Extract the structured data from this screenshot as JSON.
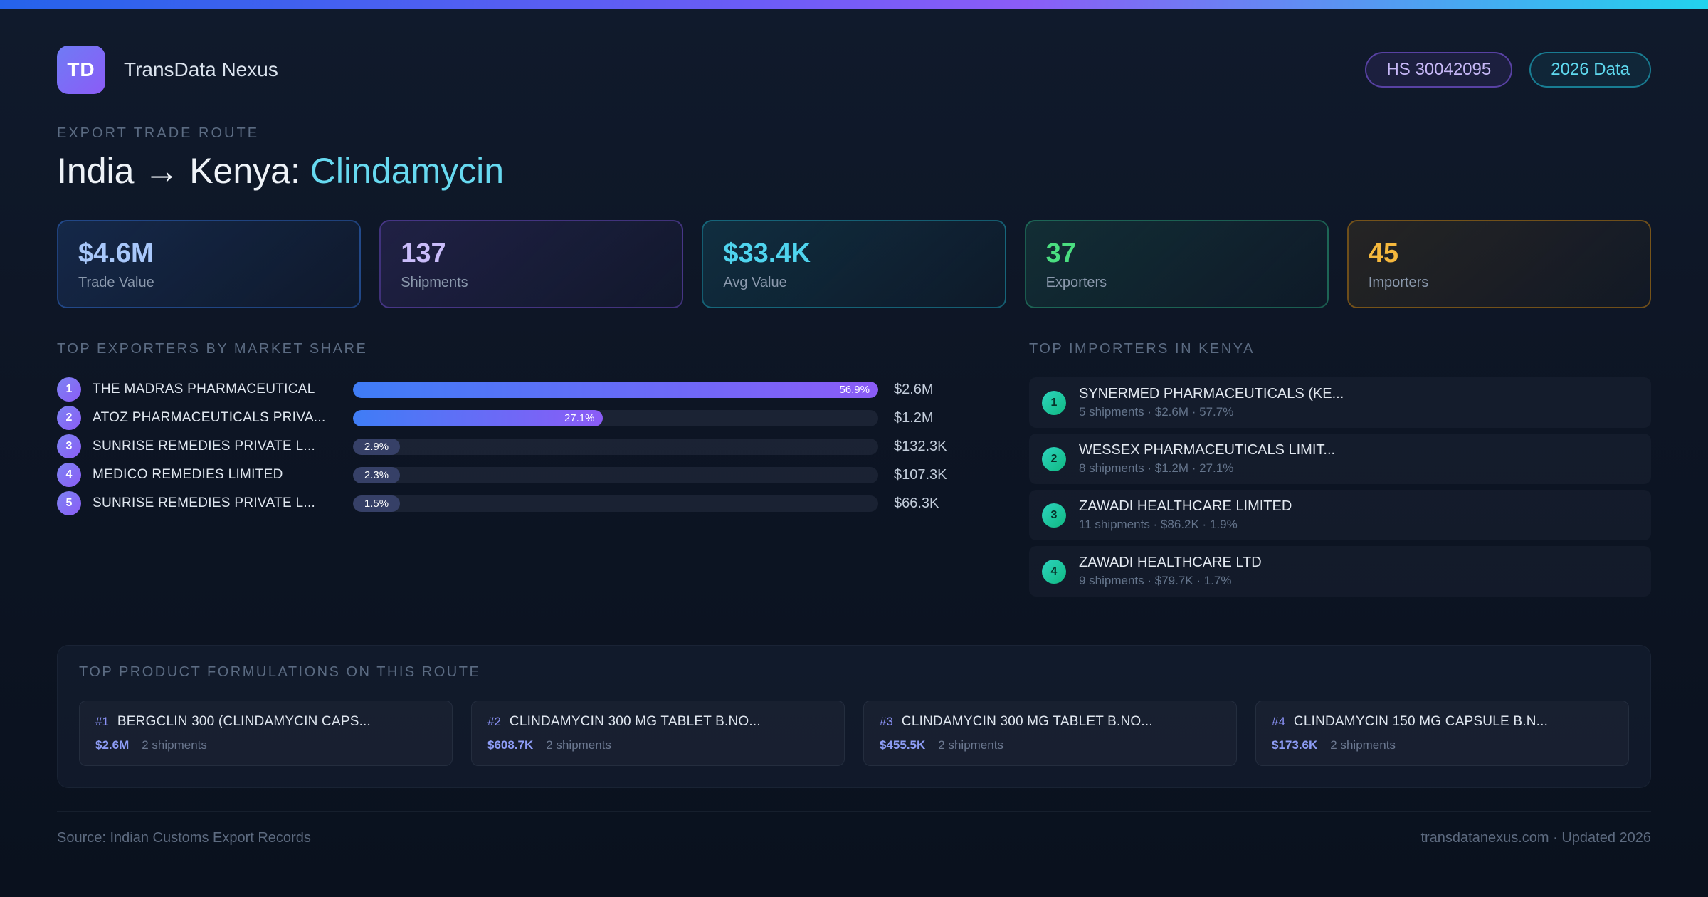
{
  "header": {
    "logo_text": "TD",
    "app_name": "TransData Nexus",
    "hs_badge": "HS 30042095",
    "year_badge": "2026 Data"
  },
  "hero": {
    "eyebrow": "EXPORT TRADE ROUTE",
    "title_main": "India → Kenya: ",
    "title_accent": "Clindamycin"
  },
  "stats": [
    {
      "value": "$4.6M",
      "label": "Trade Value",
      "theme": "blue"
    },
    {
      "value": "137",
      "label": "Shipments",
      "theme": "purple"
    },
    {
      "value": "$33.4K",
      "label": "Avg Value",
      "theme": "cyan"
    },
    {
      "value": "37",
      "label": "Exporters",
      "theme": "green"
    },
    {
      "value": "45",
      "label": "Importers",
      "theme": "amber"
    }
  ],
  "exporters": {
    "heading": "TOP EXPORTERS BY MARKET SHARE",
    "rows": [
      {
        "rank": "1",
        "name": "THE MADRAS PHARMACEUTICAL",
        "share_pct": 56.9,
        "share_label": "56.9%",
        "value": "$2.6M"
      },
      {
        "rank": "2",
        "name": "ATOZ PHARMACEUTICALS PRIVA...",
        "share_pct": 27.1,
        "share_label": "27.1%",
        "value": "$1.2M"
      },
      {
        "rank": "3",
        "name": "SUNRISE REMEDIES PRIVATE L...",
        "share_pct": 2.9,
        "share_label": "2.9%",
        "value": "$132.3K"
      },
      {
        "rank": "4",
        "name": "MEDICO REMEDIES LIMITED",
        "share_pct": 2.3,
        "share_label": "2.3%",
        "value": "$107.3K"
      },
      {
        "rank": "5",
        "name": "SUNRISE REMEDIES PRIVATE L...",
        "share_pct": 1.5,
        "share_label": "1.5%",
        "value": "$66.3K"
      }
    ]
  },
  "importers": {
    "heading": "TOP IMPORTERS IN KENYA",
    "rows": [
      {
        "rank": "1",
        "name": "SYNERMED PHARMACEUTICALS (KE...",
        "detail": "5 shipments · $2.6M · 57.7%"
      },
      {
        "rank": "2",
        "name": "WESSEX PHARMACEUTICALS LIMIT...",
        "detail": "8 shipments · $1.2M · 27.1%"
      },
      {
        "rank": "3",
        "name": "ZAWADI HEALTHCARE LIMITED",
        "detail": "11 shipments · $86.2K · 1.9%"
      },
      {
        "rank": "4",
        "name": "ZAWADI HEALTHCARE LTD",
        "detail": "9 shipments · $79.7K · 1.7%"
      }
    ]
  },
  "formulations": {
    "heading": "TOP PRODUCT FORMULATIONS ON THIS ROUTE",
    "cards": [
      {
        "rank": "#1",
        "name": "BERGCLIN 300 (CLINDAMYCIN CAPS...",
        "value": "$2.6M",
        "shipments": "2 shipments"
      },
      {
        "rank": "#2",
        "name": "CLINDAMYCIN 300 MG TABLET B.NO...",
        "value": "$608.7K",
        "shipments": "2 shipments"
      },
      {
        "rank": "#3",
        "name": "CLINDAMYCIN 300 MG TABLET B.NO...",
        "value": "$455.5K",
        "shipments": "2 shipments"
      },
      {
        "rank": "#4",
        "name": "CLINDAMYCIN 150 MG CAPSULE B.N...",
        "value": "$173.6K",
        "shipments": "2 shipments"
      }
    ]
  },
  "footer": {
    "source": "Source: Indian Customs Export Records",
    "site": "transdatanexus.com · Updated 2026"
  },
  "colors": {
    "accent_blue": "#3f7df6",
    "accent_purple": "#8b5cf6",
    "accent_cyan": "#67d9f0",
    "accent_green": "#4ade80",
    "accent_amber": "#f5b83d",
    "background": "#0d1524"
  }
}
